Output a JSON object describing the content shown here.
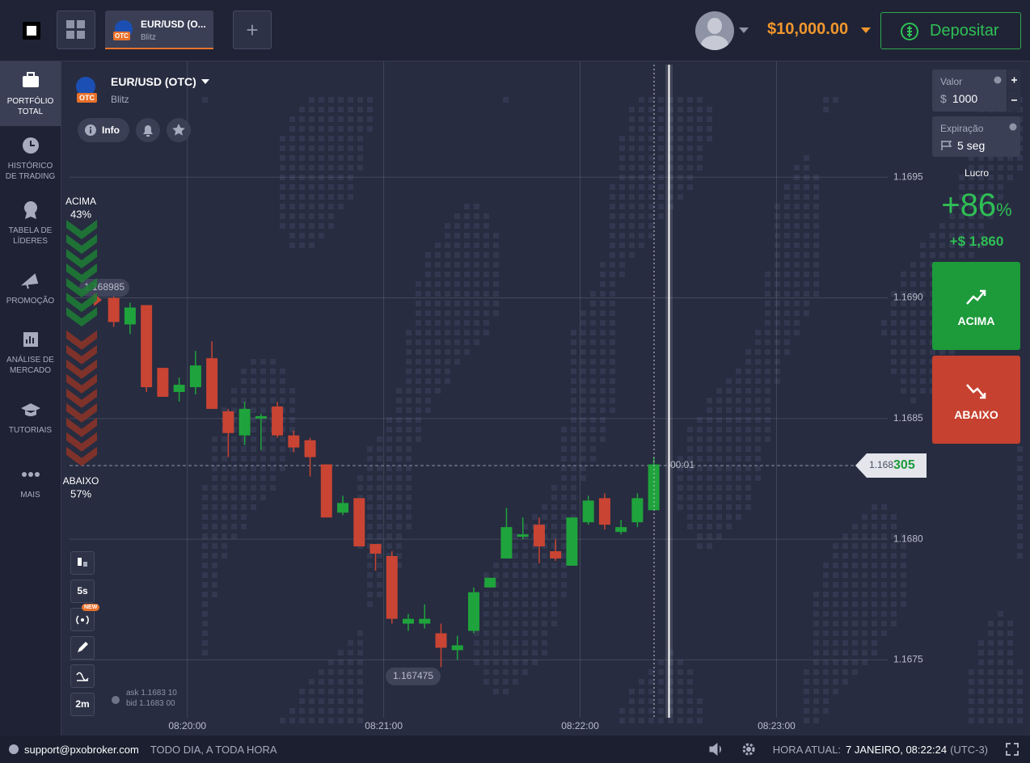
{
  "topbar": {
    "tab": {
      "title": "EUR/USD (O...",
      "subtitle": "Blitz",
      "badge": "OTC"
    },
    "balance": "$10,000.00",
    "deposit": "Depositar"
  },
  "sidebar": {
    "items": [
      "PORTFÓLIO TOTAL",
      "HISTÓRICO DE TRADING",
      "TABELA DE LÍDERES",
      "PROMOÇÃO",
      "ANÁLISE DE MERCADO",
      "TUTORIAIS",
      "MAIS"
    ]
  },
  "asset": {
    "title": "EUR/USD (OTC)",
    "subtitle": "Blitz",
    "badge": "OTC",
    "info": "Info"
  },
  "tools": {
    "interval": "5s",
    "badge": "NEW",
    "zoom": "2m"
  },
  "quote": {
    "ask": "ask 1.1683 10",
    "bid": "bid 1.1683 00"
  },
  "chart_data": {
    "type": "candlestick",
    "x": [
      "08:19:35",
      "08:19:40",
      "08:19:45",
      "08:19:50",
      "08:19:55",
      "08:20:00",
      "08:20:05",
      "08:20:10",
      "08:20:15",
      "08:20:20",
      "08:20:25",
      "08:20:30",
      "08:20:35",
      "08:20:40",
      "08:20:45",
      "08:20:50",
      "08:20:55",
      "08:21:00",
      "08:21:05",
      "08:21:10",
      "08:21:15",
      "08:21:20",
      "08:21:25",
      "08:21:30",
      "08:21:35",
      "08:21:40",
      "08:21:45",
      "08:21:50",
      "08:21:55",
      "08:22:00",
      "08:22:05",
      "08:22:10",
      "08:22:15",
      "08:22:20"
    ],
    "open": [
      1.169,
      1.16889,
      1.16897,
      1.16871,
      1.16861,
      1.16863,
      1.16875,
      1.16853,
      1.16843,
      1.1685,
      1.16855,
      1.16843,
      1.16841,
      1.16831,
      1.16811,
      1.16817,
      1.16798,
      1.16793,
      1.16765,
      1.16765,
      1.16761,
      1.16754,
      1.16762,
      1.1678,
      1.16792,
      1.16801,
      1.16806,
      1.16795,
      1.16789,
      1.16807,
      1.16817,
      1.16803,
      1.16807,
      1.16812
    ],
    "high": [
      1.16902,
      1.16898,
      1.16897,
      1.16871,
      1.16867,
      1.16878,
      1.16882,
      1.16854,
      1.16857,
      1.16852,
      1.16857,
      1.16845,
      1.16842,
      1.16831,
      1.16818,
      1.16817,
      1.16798,
      1.16795,
      1.16769,
      1.16773,
      1.16765,
      1.1676,
      1.1678,
      1.16784,
      1.16813,
      1.16809,
      1.16809,
      1.168,
      1.16809,
      1.16818,
      1.16819,
      1.16808,
      1.16819,
      1.16834
    ],
    "low": [
      1.16888,
      1.16885,
      1.16861,
      1.16859,
      1.16857,
      1.1686,
      1.16854,
      1.16834,
      1.16839,
      1.16837,
      1.16842,
      1.16836,
      1.16826,
      1.16809,
      1.1681,
      1.16797,
      1.16787,
      1.16765,
      1.16762,
      1.16763,
      1.16747,
      1.1675,
      1.16761,
      1.1678,
      1.16792,
      1.168,
      1.1679,
      1.16791,
      1.16789,
      1.16806,
      1.16804,
      1.16802,
      1.16805,
      1.16812
    ],
    "close": [
      1.1689,
      1.16896,
      1.16863,
      1.16859,
      1.16864,
      1.16872,
      1.16854,
      1.16844,
      1.16854,
      1.16851,
      1.16843,
      1.16838,
      1.16834,
      1.16809,
      1.16815,
      1.16797,
      1.16794,
      1.16767,
      1.16767,
      1.16767,
      1.16755,
      1.16756,
      1.16778,
      1.16784,
      1.16805,
      1.16802,
      1.16797,
      1.16792,
      1.16809,
      1.16816,
      1.16806,
      1.16805,
      1.16817,
      1.16831
    ],
    "up_color": "#1fa33c",
    "down_color": "#c94433",
    "xlim": [
      "08:19:24",
      "08:23:32"
    ],
    "xticks": [
      "08:20:00",
      "08:21:00",
      "08:22:00",
      "08:23:00"
    ],
    "ylim": [
      1.16726,
      1.16998
    ],
    "yticks": [
      1.1675,
      {
        "value": 1.168,
        "label": "1.1680"
      },
      1.1685,
      {
        "value": 1.169,
        "label": "1.1690"
      },
      1.1695
    ],
    "grid": true,
    "current_price": {
      "value": 1.168305,
      "label_prefix": "1.168",
      "label_suffix": "305"
    },
    "timer": "00:01",
    "high_label": {
      "value": 1.168985,
      "label": "1.168985"
    },
    "low_label": {
      "value": 1.167475,
      "label": "1.167475"
    },
    "sentiment": {
      "labels": [
        "ACIMA",
        "ABAIXO"
      ],
      "values": [
        43,
        57
      ],
      "value_labels": [
        "43%",
        "57%"
      ],
      "colors": [
        "#1f7a35",
        "#8a3328"
      ]
    }
  },
  "right_panel": {
    "amount": {
      "label": "Valor",
      "currency": "$",
      "value": "1000"
    },
    "expiry": {
      "label": "Expiração",
      "value": "5 seg"
    },
    "profit": {
      "label": "Lucro",
      "prefix": "+",
      "value": 86,
      "unit": "%",
      "payout": "+$ 1,860"
    },
    "buttons": [
      "ACIMA",
      "ABAIXO"
    ]
  },
  "footer": {
    "support": "support@pxobroker.com",
    "tagline": "TODO DIA, A TODA HORA",
    "time_label": "HORA ATUAL:",
    "time": "7 JANEIRO, 08:22:24",
    "zone": "(UTC-3)"
  }
}
